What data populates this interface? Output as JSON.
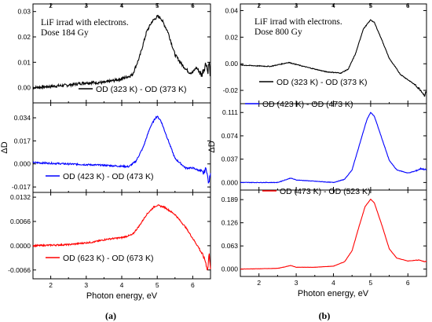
{
  "chart_data": [
    {
      "panel": "(a)",
      "x_label": "Photon energy, eV",
      "y_label": "ΔD",
      "x_ticks": [
        "2",
        "3",
        "4",
        "5",
        "6"
      ],
      "x_range": [
        1.5,
        6.5
      ],
      "subplots": [
        {
          "type": "line",
          "y_ticks": [
            "0.00",
            "0.01",
            "0.02",
            "0.03"
          ],
          "y_range": [
            -0.006,
            0.033
          ],
          "annotation": [
            "LiF irrad with electrons.",
            "Dose 184 Gy"
          ],
          "series": [
            {
              "name": "OD (323 K) - OD (373 K)",
              "color": "#000000",
              "noise": 0.0012,
              "points": [
                [
                  1.5,
                  0.0
                ],
                [
                  2.5,
                  0.001
                ],
                [
                  3.0,
                  0.002
                ],
                [
                  3.5,
                  0.002
                ],
                [
                  4.0,
                  0.0035
                ],
                [
                  4.3,
                  0.005
                ],
                [
                  4.5,
                  0.012
                ],
                [
                  4.7,
                  0.022
                ],
                [
                  4.85,
                  0.026
                ],
                [
                  5.0,
                  0.028
                ],
                [
                  5.1,
                  0.0275
                ],
                [
                  5.3,
                  0.022
                ],
                [
                  5.5,
                  0.013
                ],
                [
                  5.7,
                  0.009
                ],
                [
                  5.9,
                  0.006
                ],
                [
                  6.0,
                  0.006
                ],
                [
                  6.1,
                  0.008
                ],
                [
                  6.25,
                  0.005
                ],
                [
                  6.3,
                  0.007
                ],
                [
                  6.38,
                  0.01
                ],
                [
                  6.42,
                  0.006
                ],
                [
                  6.46,
                  0.01
                ],
                [
                  6.5,
                  0.004
                ]
              ]
            }
          ]
        },
        {
          "type": "line",
          "y_ticks": [
            "-0.017",
            "0.000",
            "0.017",
            "0.034"
          ],
          "y_range": [
            -0.021,
            0.045
          ],
          "series": [
            {
              "name": "OD (423 K) - OD (473 K)",
              "color": "#0000ff",
              "noise": 0.0012,
              "points": [
                [
                  1.5,
                  0.001
                ],
                [
                  2.5,
                  0.0
                ],
                [
                  3.5,
                  -0.001
                ],
                [
                  4.2,
                  -0.002
                ],
                [
                  4.4,
                  0.002
                ],
                [
                  4.6,
                  0.012
                ],
                [
                  4.8,
                  0.027
                ],
                [
                  4.95,
                  0.034
                ],
                [
                  5.0,
                  0.035
                ],
                [
                  5.1,
                  0.032
                ],
                [
                  5.3,
                  0.018
                ],
                [
                  5.5,
                  0.004
                ],
                [
                  5.8,
                  -0.003
                ],
                [
                  6.0,
                  -0.003
                ],
                [
                  6.2,
                  -0.005
                ],
                [
                  6.3,
                  -0.007
                ],
                [
                  6.38,
                  -0.003
                ],
                [
                  6.45,
                  -0.015
                ],
                [
                  6.5,
                  -0.006
                ]
              ]
            }
          ]
        },
        {
          "type": "line",
          "y_ticks": [
            "-0.0066",
            "0.0000",
            "0.0066",
            "0.0132"
          ],
          "y_range": [
            -0.009,
            0.0145
          ],
          "series": [
            {
              "name": "OD (623 K) - OD (673 K)",
              "color": "#ff0000",
              "noise": 0.0004,
              "points": [
                [
                  1.5,
                  0.0
                ],
                [
                  2.5,
                  0.0003
                ],
                [
                  3.2,
                  0.001
                ],
                [
                  3.6,
                  0.0018
                ],
                [
                  4.0,
                  0.0022
                ],
                [
                  4.3,
                  0.003
                ],
                [
                  4.5,
                  0.0055
                ],
                [
                  4.7,
                  0.0085
                ],
                [
                  4.9,
                  0.0105
                ],
                [
                  5.0,
                  0.011
                ],
                [
                  5.2,
                  0.0105
                ],
                [
                  5.5,
                  0.0085
                ],
                [
                  5.8,
                  0.005
                ],
                [
                  6.0,
                  0.002
                ],
                [
                  6.2,
                  -0.001
                ],
                [
                  6.35,
                  -0.004
                ],
                [
                  6.42,
                  -0.0068
                ],
                [
                  6.46,
                  -0.002
                ],
                [
                  6.5,
                  -0.006
                ]
              ]
            }
          ]
        }
      ]
    },
    {
      "panel": "(b)",
      "x_label": "Photon energy, eV",
      "y_label": "ΔD",
      "x_ticks": [
        "2",
        "3",
        "4",
        "5",
        "6"
      ],
      "x_range": [
        1.5,
        6.5
      ],
      "subplots": [
        {
          "type": "line",
          "y_ticks": [
            "-0.02",
            "0.00",
            "0.02",
            "0.04"
          ],
          "y_range": [
            -0.03,
            0.045
          ],
          "annotation": [
            "LiF irrad with electrons.",
            "Dose 800 Gy"
          ],
          "series": [
            {
              "name": "OD (323 K) - OD (373 K)",
              "color": "#000000",
              "noise": 0.0006,
              "points": [
                [
                  1.5,
                  -0.001
                ],
                [
                  2.3,
                  -0.002
                ],
                [
                  2.8,
                  0.001
                ],
                [
                  3.2,
                  -0.002
                ],
                [
                  3.8,
                  -0.006
                ],
                [
                  4.2,
                  -0.007
                ],
                [
                  4.4,
                  -0.004
                ],
                [
                  4.6,
                  0.008
                ],
                [
                  4.8,
                  0.026
                ],
                [
                  5.0,
                  0.033
                ],
                [
                  5.1,
                  0.031
                ],
                [
                  5.3,
                  0.018
                ],
                [
                  5.5,
                  0.004
                ],
                [
                  5.8,
                  -0.008
                ],
                [
                  6.0,
                  -0.012
                ],
                [
                  6.2,
                  -0.016
                ],
                [
                  6.35,
                  -0.02
                ],
                [
                  6.45,
                  -0.024
                ],
                [
                  6.5,
                  -0.02
                ]
              ]
            }
          ]
        },
        {
          "type": "line",
          "y_ticks": [
            "0.000",
            "0.037",
            "0.074",
            "0.111"
          ],
          "y_range": [
            -0.012,
            0.125
          ],
          "series": [
            {
              "name": "OD (423 K) - OD (473 K)",
              "color": "#0000ff",
              "noise": 0.0008,
              "points": [
                [
                  1.5,
                  0.0
                ],
                [
                  2.5,
                  0.0
                ],
                [
                  2.7,
                  0.004
                ],
                [
                  2.85,
                  0.007
                ],
                [
                  3.0,
                  0.004
                ],
                [
                  3.5,
                  0.002
                ],
                [
                  4.0,
                  0.0
                ],
                [
                  4.3,
                  0.005
                ],
                [
                  4.5,
                  0.02
                ],
                [
                  4.7,
                  0.06
                ],
                [
                  4.9,
                  0.1
                ],
                [
                  5.0,
                  0.111
                ],
                [
                  5.1,
                  0.105
                ],
                [
                  5.3,
                  0.07
                ],
                [
                  5.5,
                  0.035
                ],
                [
                  5.7,
                  0.02
                ],
                [
                  6.0,
                  0.015
                ],
                [
                  6.2,
                  0.018
                ],
                [
                  6.35,
                  0.022
                ],
                [
                  6.5,
                  0.02
                ]
              ]
            }
          ]
        },
        {
          "type": "line",
          "y_ticks": [
            "0.000",
            "0.063",
            "0.126",
            "0.189"
          ],
          "y_range": [
            -0.02,
            0.215
          ],
          "series": [
            {
              "name": "OD (473 K) - OD (523 K)",
              "color": "#ff0000",
              "noise": 0.0006,
              "points": [
                [
                  1.5,
                  0.0
                ],
                [
                  2.5,
                  0.002
                ],
                [
                  2.7,
                  0.006
                ],
                [
                  2.85,
                  0.01
                ],
                [
                  3.0,
                  0.005
                ],
                [
                  3.5,
                  0.005
                ],
                [
                  4.0,
                  0.008
                ],
                [
                  4.3,
                  0.02
                ],
                [
                  4.5,
                  0.05
                ],
                [
                  4.7,
                  0.12
                ],
                [
                  4.85,
                  0.17
                ],
                [
                  5.0,
                  0.19
                ],
                [
                  5.1,
                  0.18
                ],
                [
                  5.3,
                  0.12
                ],
                [
                  5.5,
                  0.055
                ],
                [
                  5.7,
                  0.03
                ],
                [
                  6.0,
                  0.022
                ],
                [
                  6.3,
                  0.025
                ],
                [
                  6.45,
                  0.02
                ],
                [
                  6.5,
                  0.022
                ]
              ]
            }
          ]
        }
      ]
    }
  ]
}
